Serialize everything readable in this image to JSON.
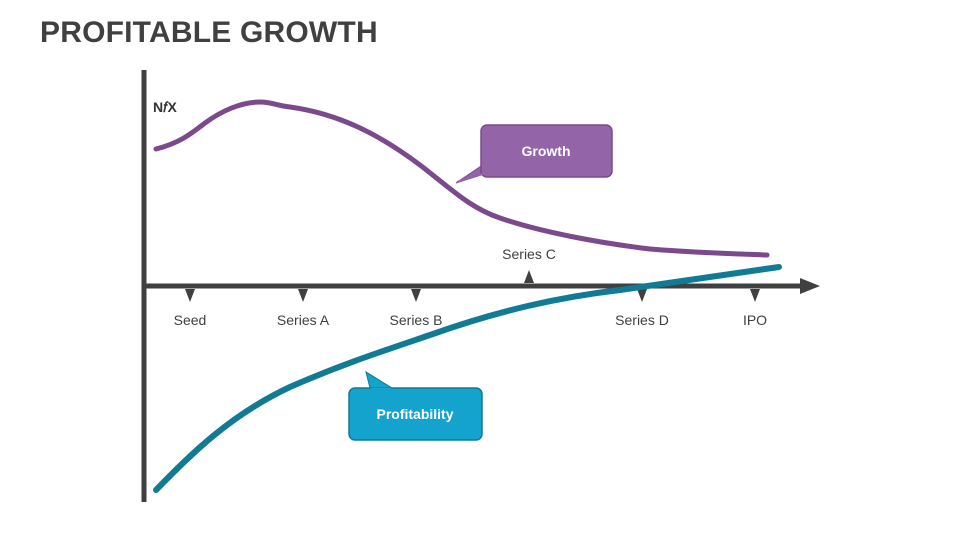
{
  "title": "PROFITABLE GROWTH",
  "y_axis_label": "N𝑓X",
  "stages": [
    "Seed",
    "Series A",
    "Series B",
    "Series C",
    "Series D",
    "IPO"
  ],
  "callouts": {
    "growth": "Growth",
    "profitability": "Profitability"
  },
  "colors": {
    "growth": "#7b4a8c",
    "growth_callout": "#9464a9",
    "profitability": "#117a94",
    "profitability_callout": "#13a3cc",
    "axis": "#404040",
    "title": "#404040"
  }
}
